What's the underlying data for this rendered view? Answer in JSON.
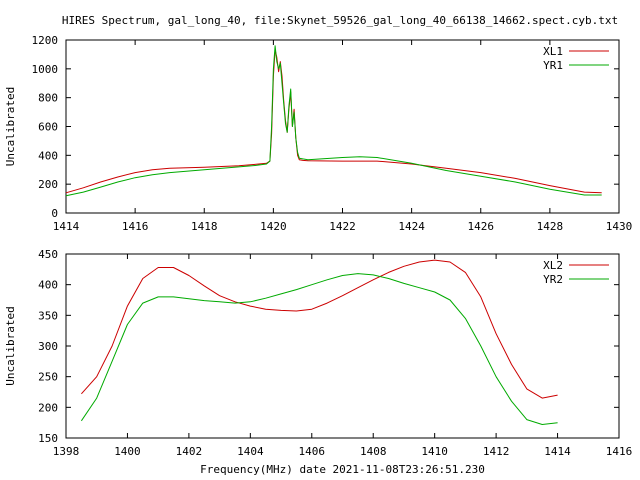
{
  "title": "HIRES Spectrum, gal_long_40, file:Skynet_59526_gal_long_40_66138_14662.spect.cyb.txt",
  "chart_data": [
    {
      "type": "line",
      "ylabel": "Uncalibrated",
      "xlabel": "",
      "xlim": [
        1414,
        1430
      ],
      "ylim": [
        0,
        1200
      ],
      "xticks": [
        1414,
        1416,
        1418,
        1420,
        1422,
        1424,
        1426,
        1428,
        1430
      ],
      "yticks": [
        0,
        200,
        400,
        600,
        800,
        1000,
        1200
      ],
      "legend_position": "top-right",
      "series": [
        {
          "name": "XL1",
          "color": "#cc0000",
          "x": [
            1414.0,
            1414.5,
            1415.0,
            1415.5,
            1416.0,
            1416.5,
            1417.0,
            1418.0,
            1419.0,
            1419.5,
            1419.8,
            1419.9,
            1419.95,
            1420.0,
            1420.05,
            1420.1,
            1420.15,
            1420.2,
            1420.25,
            1420.3,
            1420.35,
            1420.4,
            1420.45,
            1420.5,
            1420.55,
            1420.6,
            1420.65,
            1420.7,
            1420.75,
            1420.85,
            1421.0,
            1422.0,
            1423.0,
            1424.0,
            1424.5,
            1425.0,
            1426.0,
            1427.0,
            1428.0,
            1429.0,
            1429.5
          ],
          "y": [
            140,
            175,
            215,
            250,
            280,
            300,
            310,
            318,
            328,
            338,
            345,
            360,
            550,
            950,
            1130,
            1080,
            980,
            1050,
            950,
            780,
            640,
            560,
            720,
            840,
            600,
            720,
            520,
            400,
            370,
            365,
            362,
            360,
            360,
            340,
            325,
            310,
            280,
            240,
            190,
            145,
            140
          ]
        },
        {
          "name": "YR1",
          "color": "#00aa00",
          "x": [
            1414.0,
            1414.5,
            1415.0,
            1415.5,
            1416.0,
            1416.5,
            1417.0,
            1418.0,
            1419.0,
            1419.5,
            1419.8,
            1419.9,
            1419.95,
            1420.0,
            1420.05,
            1420.1,
            1420.15,
            1420.2,
            1420.25,
            1420.3,
            1420.35,
            1420.4,
            1420.45,
            1420.5,
            1420.55,
            1420.6,
            1420.65,
            1420.7,
            1420.75,
            1420.85,
            1421.0,
            1422.0,
            1422.5,
            1423.0,
            1424.0,
            1424.5,
            1425.0,
            1426.0,
            1427.0,
            1428.0,
            1429.0,
            1429.5
          ],
          "y": [
            120,
            145,
            180,
            215,
            245,
            265,
            280,
            300,
            320,
            330,
            340,
            360,
            600,
            1000,
            1160,
            1050,
            1000,
            1040,
            900,
            760,
            620,
            560,
            740,
            860,
            600,
            700,
            520,
            420,
            380,
            375,
            370,
            385,
            390,
            385,
            345,
            320,
            295,
            255,
            215,
            165,
            125,
            125
          ]
        }
      ]
    },
    {
      "type": "line",
      "ylabel": "Uncalibrated",
      "xlabel": "Frequency(MHz) date 2021-11-08T23:26:51.230",
      "xlim": [
        1398,
        1416
      ],
      "ylim": [
        150,
        450
      ],
      "xticks": [
        1398,
        1400,
        1402,
        1404,
        1406,
        1408,
        1410,
        1412,
        1414,
        1416
      ],
      "yticks": [
        150,
        200,
        250,
        300,
        350,
        400,
        450
      ],
      "legend_position": "top-right",
      "series": [
        {
          "name": "XL2",
          "color": "#cc0000",
          "x": [
            1398.5,
            1399.0,
            1399.5,
            1400.0,
            1400.5,
            1401.0,
            1401.5,
            1402.0,
            1402.5,
            1403.0,
            1403.5,
            1404.0,
            1404.5,
            1405.0,
            1405.5,
            1406.0,
            1406.5,
            1407.0,
            1407.5,
            1408.0,
            1408.5,
            1409.0,
            1409.5,
            1410.0,
            1410.5,
            1411.0,
            1411.5,
            1412.0,
            1412.5,
            1413.0,
            1413.5,
            1414.0
          ],
          "y": [
            222,
            250,
            300,
            365,
            410,
            428,
            428,
            415,
            398,
            382,
            372,
            365,
            360,
            358,
            357,
            360,
            370,
            382,
            395,
            408,
            420,
            430,
            437,
            440,
            437,
            420,
            380,
            320,
            270,
            230,
            215,
            220
          ]
        },
        {
          "name": "YR2",
          "color": "#00aa00",
          "x": [
            1398.5,
            1399.0,
            1399.5,
            1400.0,
            1400.5,
            1401.0,
            1401.5,
            1402.0,
            1402.5,
            1403.0,
            1403.5,
            1404.0,
            1404.5,
            1405.0,
            1405.5,
            1406.0,
            1406.5,
            1407.0,
            1407.5,
            1408.0,
            1408.5,
            1409.0,
            1409.5,
            1410.0,
            1410.5,
            1411.0,
            1411.5,
            1412.0,
            1412.5,
            1413.0,
            1413.5,
            1414.0
          ],
          "y": [
            178,
            215,
            275,
            335,
            370,
            380,
            380,
            377,
            374,
            372,
            370,
            372,
            378,
            385,
            392,
            400,
            408,
            415,
            418,
            416,
            410,
            402,
            395,
            388,
            375,
            345,
            300,
            250,
            210,
            180,
            172,
            175
          ]
        }
      ]
    }
  ]
}
